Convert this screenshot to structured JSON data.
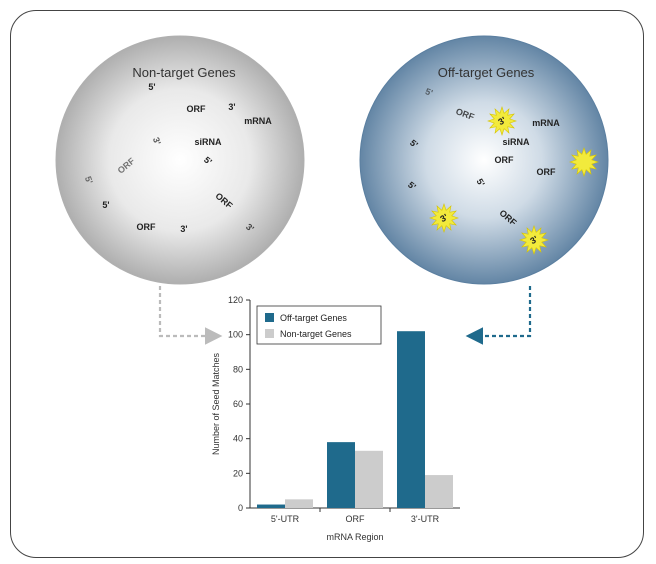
{
  "left_circle": {
    "title": "Non-target Genes",
    "labels": [
      "5'",
      "ORF",
      "3'",
      "mRNA",
      "siRNA",
      "3'",
      "5'",
      "ORF",
      "5'",
      "5'",
      "ORF",
      "ORF",
      "3'",
      "3'"
    ]
  },
  "right_circle": {
    "title": "Off-target Genes",
    "labels": [
      "5'",
      "ORF",
      "mRNA",
      "siRNA",
      "5'",
      "ORF",
      "5'",
      "5'",
      "ORF",
      "ORF"
    ],
    "burst_labels": [
      "3'",
      "3'",
      "3'"
    ]
  },
  "colors": {
    "off_target": "#1f6a8c",
    "non_target": "#cccccc",
    "left_arrow": "#bbbbbb",
    "right_arrow": "#1f6a8c",
    "burst": "#f2ea3c"
  },
  "chart_data": {
    "type": "bar",
    "categories": [
      "5'-UTR",
      "ORF",
      "3'-UTR"
    ],
    "series": [
      {
        "name": "Off-target Genes",
        "values": [
          2,
          38,
          102
        ]
      },
      {
        "name": "Non-target Genes",
        "values": [
          5,
          33,
          19
        ]
      }
    ],
    "xlabel": "mRNA Region",
    "ylabel": "Number of Seed Matches",
    "ylim": [
      0,
      120
    ],
    "yticks": [
      0,
      20,
      40,
      60,
      80,
      100,
      120
    ],
    "legend": "top-left",
    "grid": false
  }
}
